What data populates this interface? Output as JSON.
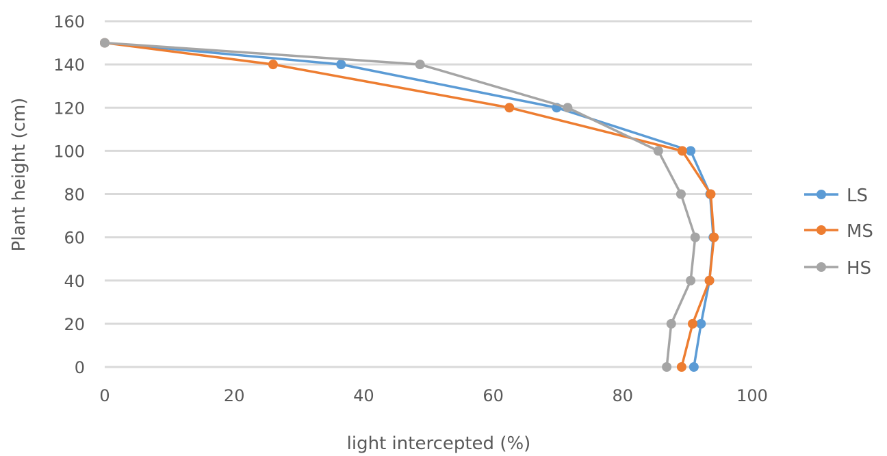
{
  "chart_data": {
    "type": "line",
    "xlabel": "light intercepted (%)",
    "ylabel": "Plant height (cm)",
    "xlim": [
      0,
      100
    ],
    "ylim": [
      0,
      160
    ],
    "x_ticks": [
      "0",
      "20",
      "40",
      "60",
      "80",
      "100"
    ],
    "y_ticks": [
      "0",
      "20",
      "40",
      "60",
      "80",
      "100",
      "120",
      "140",
      "160"
    ],
    "grid": "horizontal",
    "legend_position": "right",
    "series": [
      {
        "name": "LS",
        "color": "#5b9bd5",
        "points": [
          {
            "x": 0,
            "y": 150
          },
          {
            "x": 36.5,
            "y": 140
          },
          {
            "x": 69.8,
            "y": 120
          },
          {
            "x": 90.5,
            "y": 100
          },
          {
            "x": 93.5,
            "y": 80
          },
          {
            "x": 94,
            "y": 60
          },
          {
            "x": 93.4,
            "y": 40
          },
          {
            "x": 92.1,
            "y": 20
          },
          {
            "x": 91,
            "y": 0
          }
        ]
      },
      {
        "name": "MS",
        "color": "#ed7d31",
        "points": [
          {
            "x": 0,
            "y": 150
          },
          {
            "x": 26,
            "y": 140
          },
          {
            "x": 62.5,
            "y": 120
          },
          {
            "x": 89.2,
            "y": 100
          },
          {
            "x": 93.6,
            "y": 80
          },
          {
            "x": 94.1,
            "y": 60
          },
          {
            "x": 93.4,
            "y": 40
          },
          {
            "x": 90.8,
            "y": 20
          },
          {
            "x": 89.1,
            "y": 0
          }
        ]
      },
      {
        "name": "HS",
        "color": "#a5a5a5",
        "points": [
          {
            "x": 0,
            "y": 150
          },
          {
            "x": 48.7,
            "y": 140
          },
          {
            "x": 71.5,
            "y": 120
          },
          {
            "x": 85.5,
            "y": 100
          },
          {
            "x": 89,
            "y": 80
          },
          {
            "x": 91.2,
            "y": 60
          },
          {
            "x": 90.5,
            "y": 40
          },
          {
            "x": 87.5,
            "y": 20
          },
          {
            "x": 86.8,
            "y": 0
          }
        ]
      }
    ]
  }
}
